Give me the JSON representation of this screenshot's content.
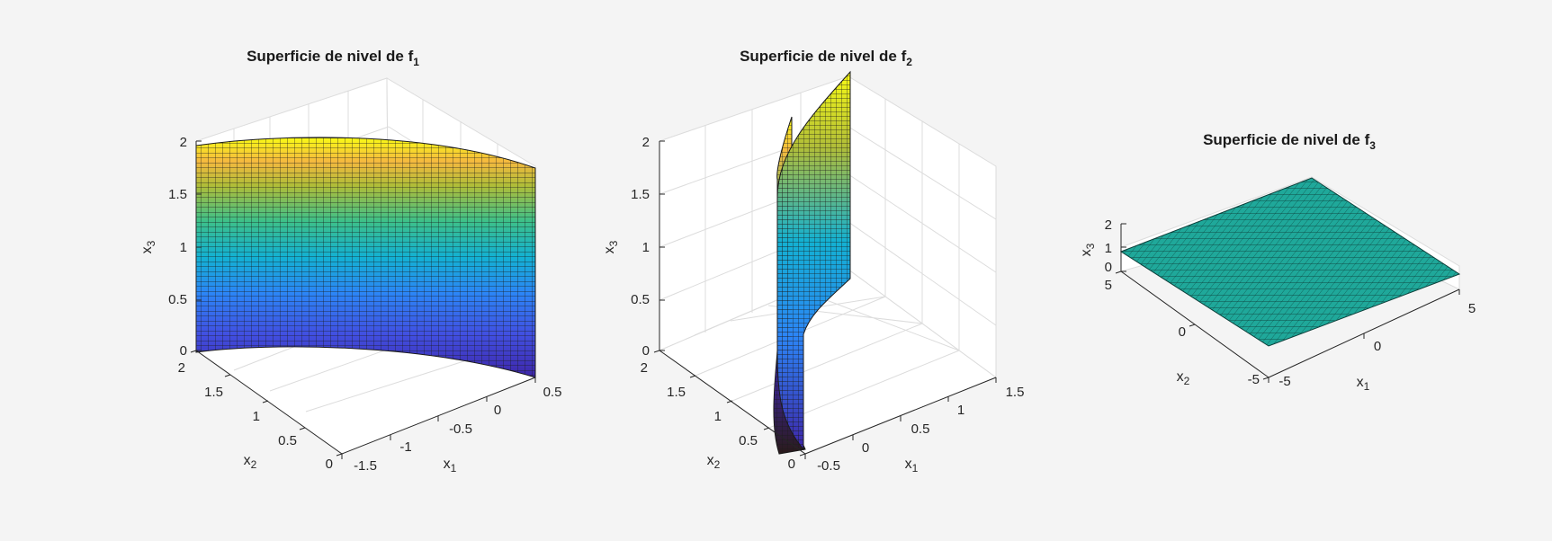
{
  "figure": {
    "background": "#f4f4f4",
    "colormap": "parula"
  },
  "chart_data": [
    {
      "type": "surface",
      "title": "Superficie de nivel de f",
      "title_sub": "1",
      "xlabel": "x",
      "xlabel_sub": "1",
      "ylabel": "x",
      "ylabel_sub": "2",
      "zlabel": "x",
      "zlabel_sub": "3",
      "xticks": [
        "-1.5",
        "-1",
        "-0.5",
        "0",
        "0.5"
      ],
      "yticks": [
        "0",
        "0.5",
        "1",
        "1.5",
        "2"
      ],
      "zticks": [
        "0",
        "0.5",
        "1",
        "1.5",
        "2"
      ],
      "xlim": [
        -1.5,
        0.5
      ],
      "ylim": [
        0,
        2
      ],
      "zlim": [
        0,
        2
      ],
      "grid": true,
      "surface": "curved sheet colored by x3 (parula)"
    },
    {
      "type": "surface",
      "title": "Superficie de nivel de f",
      "title_sub": "2",
      "xlabel": "x",
      "xlabel_sub": "1",
      "ylabel": "x",
      "ylabel_sub": "2",
      "zlabel": "x",
      "zlabel_sub": "3",
      "xticks": [
        "-0.5",
        "0",
        "0.5",
        "1",
        "1.5"
      ],
      "yticks": [
        "0",
        "0.5",
        "1",
        "1.5",
        "2"
      ],
      "zticks": [
        "0",
        "0.5",
        "1",
        "1.5",
        "2"
      ],
      "xlim": [
        -0.5,
        1.5
      ],
      "ylim": [
        0,
        2
      ],
      "zlim": [
        0,
        2
      ],
      "grid": true,
      "surface": "vertical curved sheet colored by x3 (parula)"
    },
    {
      "type": "surface",
      "title": "Superficie de nivel de f",
      "title_sub": "3",
      "xlabel": "x",
      "xlabel_sub": "1",
      "ylabel": "x",
      "ylabel_sub": "2",
      "zlabel": "x",
      "zlabel_sub": "3",
      "xticks": [
        "-5",
        "0",
        "5"
      ],
      "yticks": [
        "-5",
        "0",
        "5"
      ],
      "zticks": [
        "0",
        "1",
        "2"
      ],
      "xlim": [
        -5,
        5
      ],
      "ylim": [
        -5,
        5
      ],
      "zlim": [
        0,
        2
      ],
      "grid": false,
      "surface": "flat plane at constant x3",
      "surface_color": "#1fa89a"
    }
  ]
}
